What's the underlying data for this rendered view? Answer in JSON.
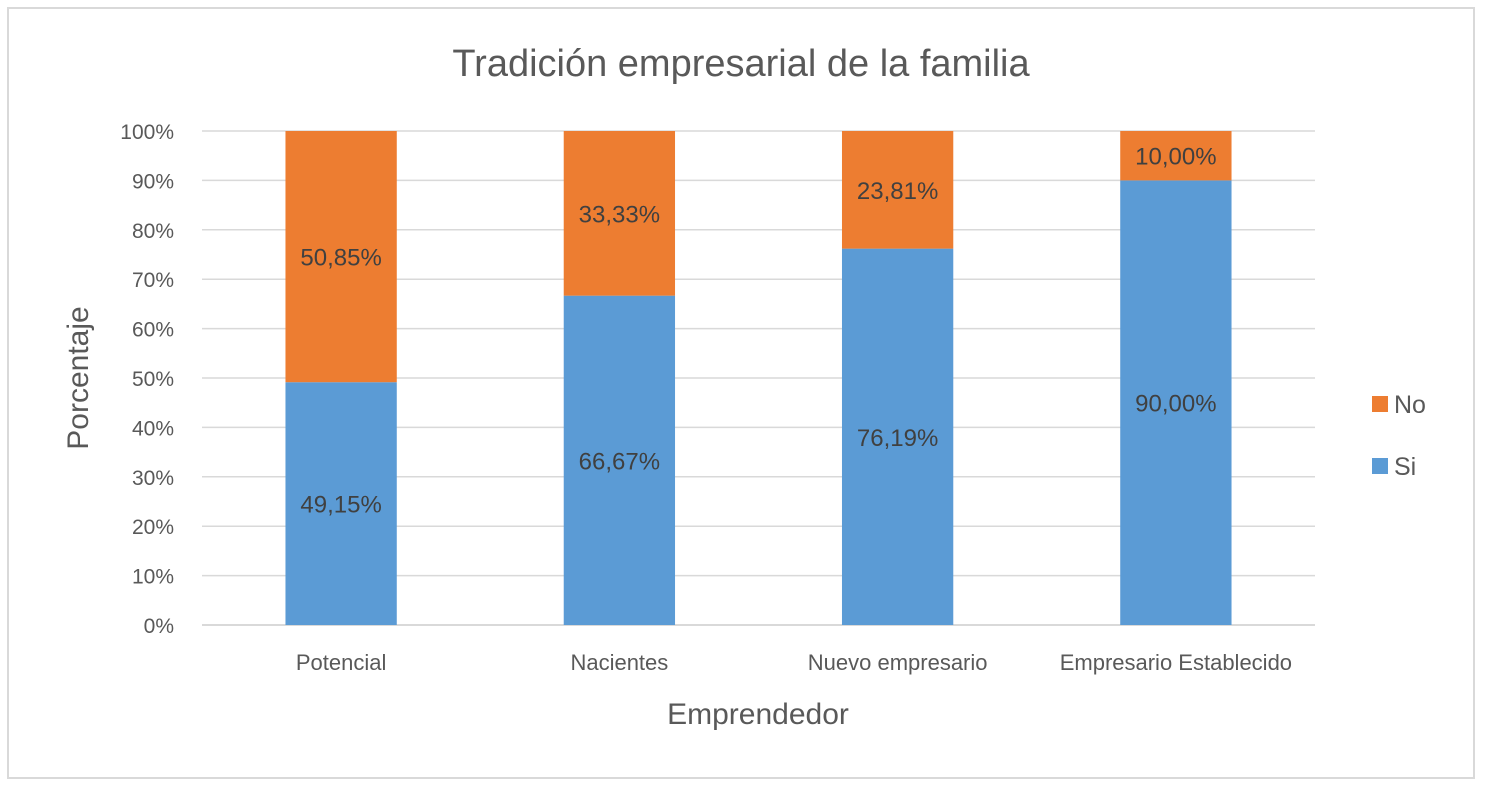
{
  "chart_data": {
    "type": "bar",
    "stacked": true,
    "title": "Tradición empresarial de la familia",
    "xlabel": "Emprendedor",
    "ylabel": "Porcentaje",
    "categories": [
      "Potencial",
      "Nacientes",
      "Nuevo empresario",
      "Empresario Establecido"
    ],
    "ylim": [
      0,
      100
    ],
    "yticks": [
      0,
      10,
      20,
      30,
      40,
      50,
      60,
      70,
      80,
      90,
      100
    ],
    "ytick_labels": [
      "0%",
      "10%",
      "20%",
      "30%",
      "40%",
      "50%",
      "60%",
      "70%",
      "80%",
      "90%",
      "100%"
    ],
    "grid": true,
    "legend_placement": "right",
    "series": [
      {
        "name": "Si",
        "color": "#5b9bd5",
        "values": [
          49.15,
          66.67,
          76.19,
          90.0
        ],
        "labels": [
          "49,15%",
          "66,67%",
          "76,19%",
          "90,00%"
        ]
      },
      {
        "name": "No",
        "color": "#ed7d31",
        "values": [
          50.85,
          33.33,
          23.81,
          10.0
        ],
        "labels": [
          "50,85%",
          "33,33%",
          "23,81%",
          "10,00%"
        ]
      }
    ],
    "legend_order": [
      "No",
      "Si"
    ]
  }
}
